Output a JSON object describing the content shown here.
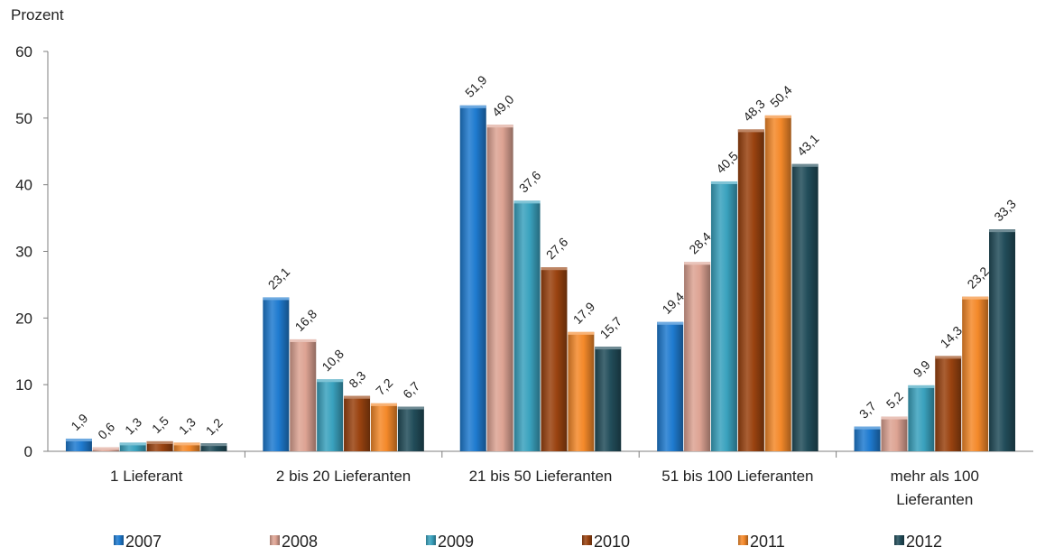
{
  "chart_data": {
    "type": "bar",
    "ylabel": "Prozent",
    "ylim": [
      0,
      60
    ],
    "yticks": [
      0,
      10,
      20,
      30,
      40,
      50,
      60
    ],
    "grid": false,
    "legend_position": "bottom",
    "categories": [
      [
        "1 Lieferant"
      ],
      [
        "2 bis 20 Lieferanten"
      ],
      [
        "21 bis 50 Lieferanten"
      ],
      [
        "51 bis 100 Lieferanten"
      ],
      [
        "mehr als 100",
        "Lieferanten"
      ]
    ],
    "series": [
      {
        "name": "2007",
        "color": "#1F7BD0",
        "values": [
          1.9,
          23.1,
          51.9,
          19.4,
          3.7
        ],
        "labels": [
          "1,9",
          "23,1",
          "51,9",
          "19,4",
          "3,7"
        ]
      },
      {
        "name": "2008",
        "color": "#DDA393",
        "values": [
          0.6,
          16.8,
          49.0,
          28.4,
          5.2
        ],
        "labels": [
          "0,6",
          "16,8",
          "49,0",
          "28,4",
          "5,2"
        ]
      },
      {
        "name": "2009",
        "color": "#3AA2BE",
        "values": [
          1.3,
          10.8,
          37.6,
          40.5,
          9.9
        ],
        "labels": [
          "1,3",
          "10,8",
          "37,6",
          "40,5",
          "9,9"
        ]
      },
      {
        "name": "2010",
        "color": "#9A4310",
        "values": [
          1.5,
          8.3,
          27.6,
          48.3,
          14.3
        ],
        "labels": [
          "1,5",
          "8,3",
          "27,6",
          "48,3",
          "14,3"
        ]
      },
      {
        "name": "2011",
        "color": "#F4892A",
        "values": [
          1.3,
          7.2,
          17.9,
          50.4,
          23.2
        ],
        "labels": [
          "1,3",
          "7,2",
          "17,9",
          "50,4",
          "23,2"
        ]
      },
      {
        "name": "2012",
        "color": "#224D5A",
        "values": [
          1.2,
          6.7,
          15.7,
          43.1,
          33.3
        ],
        "labels": [
          "1,2",
          "6,7",
          "15,7",
          "43,1",
          "33,3"
        ]
      }
    ]
  }
}
